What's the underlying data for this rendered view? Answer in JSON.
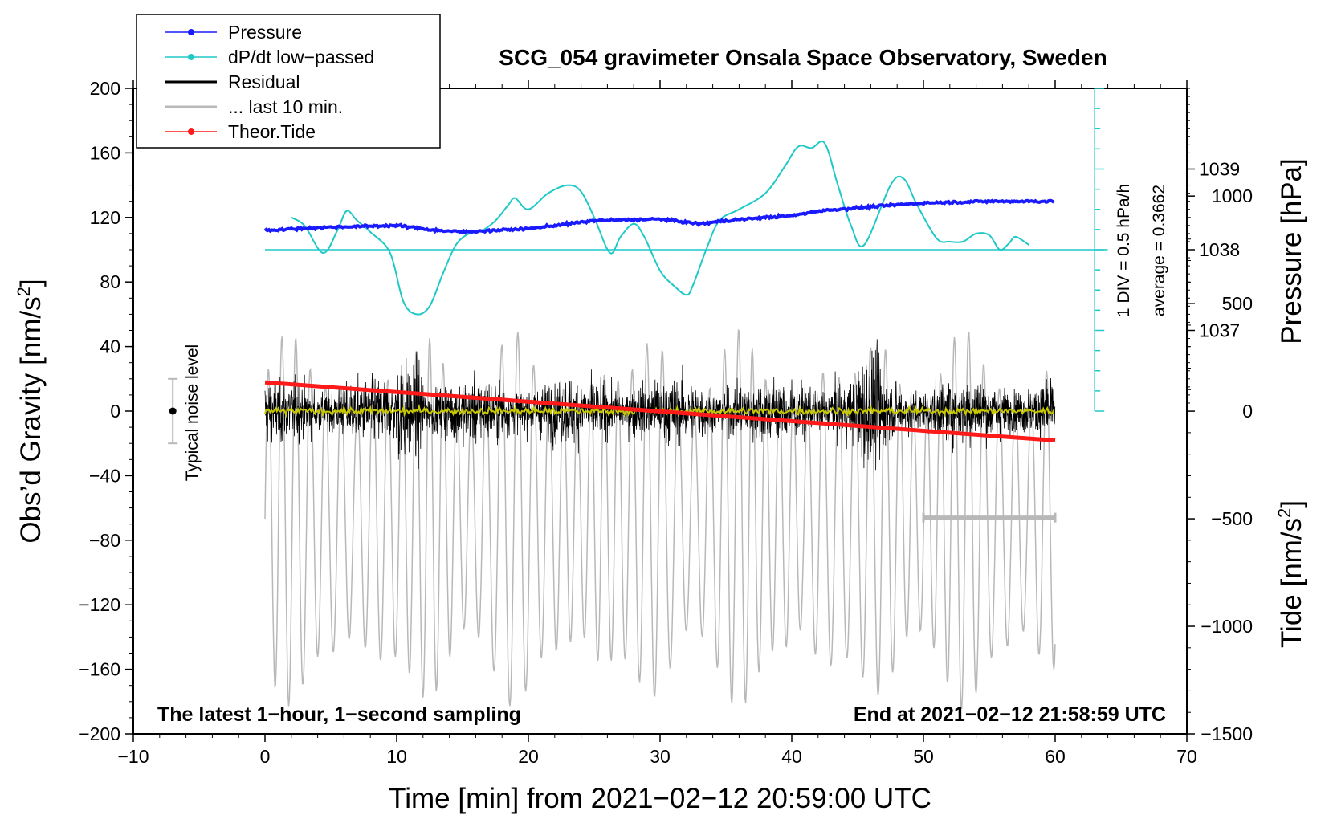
{
  "chart_data": {
    "type": "line",
    "title": "SCG_054 gravimeter Onsala Space Observatory, Sweden",
    "xlabel": "Time [min] from 2021−02−12 20:59:00 UTC",
    "ylabel_left": "Obs’d Gravity [nm/s",
    "ylabel_left_sup": "2",
    "ylabel_left_close": "]",
    "ylabel_pressure": "Pressure [hPa]",
    "ylabel_tide": "Tide [nm/s",
    "ylabel_tide_sup": "2",
    "ylabel_tide_close": "]",
    "xlim": [
      -10,
      70
    ],
    "ylim": [
      -200,
      200
    ],
    "x_ticks": [
      -10,
      0,
      10,
      20,
      30,
      40,
      50,
      60,
      70
    ],
    "x_tick_labels": [
      "−10",
      "0",
      "10",
      "20",
      "30",
      "40",
      "50",
      "60",
      "70"
    ],
    "y_ticks": [
      200,
      160,
      120,
      80,
      40,
      0,
      -40,
      -80,
      -120,
      -160,
      -200
    ],
    "y_tick_labels": [
      "200",
      "160",
      "120",
      "80",
      "40",
      "0",
      "−40",
      "−80",
      "−120",
      "−160",
      "−200"
    ],
    "pressure_ticks": [
      1039,
      1038,
      1037
    ],
    "pressure_tick_labels": [
      "1039",
      "1038",
      "1037"
    ],
    "pressure_axis": {
      "hPa_at_y0": 1036,
      "nm_per_hPa": 50
    },
    "tide_ticks": [
      1000,
      500,
      0,
      -500,
      -1000,
      -1500
    ],
    "tide_tick_labels": [
      "1000",
      "500",
      "0",
      "−500",
      "−1000",
      "−1500"
    ],
    "tide_axis": {
      "tide_at_y_minus200": -1500,
      "nm_per_tide_unit": 0.1333
    },
    "annotations": {
      "bottom_left": "The latest 1−hour, 1−second sampling",
      "bottom_right": "End at 2021−02−12 21:58:59 UTC",
      "div_label": "1 DIV = 0.5 hPa/h",
      "average_label": "average = 0.3662",
      "noise_label": "Typical noise level"
    },
    "noise_bar": {
      "x": -7,
      "center": 0,
      "low": -20,
      "high": 20
    },
    "dpdt_scale": {
      "x": 63,
      "baseline": 100,
      "top": 200,
      "bottom": 0,
      "tick_step": 12.5
    },
    "last10_bar": {
      "x_start": 50,
      "x_end": 60,
      "y": -66
    },
    "legend": [
      {
        "label": "Pressure",
        "color": "#1a1aff",
        "marker": true
      },
      {
        "label": "dP/dt low−passed",
        "color": "#20c8c8",
        "marker": true
      },
      {
        "label": "Residual",
        "color": "#000000",
        "marker": false
      },
      {
        "label": "... last 10 min.",
        "color": "#b8b8b8",
        "marker": false
      },
      {
        "label": "Theor.Tide",
        "color": "#ff1a1a",
        "marker": true
      }
    ],
    "series": [
      {
        "name": "Pressure",
        "color": "#1a1aff",
        "units": "hPa (plotted in gravity units)",
        "x": [
          0,
          5,
          10,
          13,
          15,
          20,
          25,
          30,
          33,
          35,
          38,
          40,
          42,
          45,
          50,
          55,
          60
        ],
        "values": [
          112,
          114,
          115,
          112,
          111,
          113,
          118,
          119,
          116,
          118,
          120,
          121,
          124,
          126,
          129,
          130,
          130
        ]
      },
      {
        "name": "dP/dt low-passed",
        "color": "#20c8c8",
        "x": [
          2,
          3,
          4.4,
          5.5,
          6.2,
          7,
          8,
          9.5,
          10.5,
          11.5,
          12.5,
          13.5,
          14.5,
          15.5,
          16.5,
          17.5,
          18.5,
          19,
          20,
          21.5,
          23,
          24,
          25,
          26.2,
          27,
          28,
          28.8,
          30,
          31,
          32,
          32.5,
          33.5,
          34.5,
          36,
          38,
          39.5,
          40.5,
          41.5,
          42.5,
          43.5,
          44.5,
          45.5,
          47.5,
          48.5,
          49.5,
          51,
          52,
          53,
          54,
          55,
          55.8,
          56.5,
          57,
          58
        ],
        "values": [
          120,
          115,
          98,
          112,
          124,
          118,
          111,
          98,
          68,
          60,
          65,
          85,
          103,
          110,
          112,
          118,
          128,
          132,
          125,
          135,
          140,
          136,
          120,
          98,
          108,
          116,
          108,
          87,
          78,
          72,
          78,
          100,
          118,
          125,
          135,
          152,
          164,
          163,
          166,
          140,
          115,
          103,
          140,
          144,
          128,
          107,
          105,
          105,
          110,
          109,
          100,
          104,
          108,
          103
        ]
      },
      {
        "name": "Residual",
        "color": "#000000",
        "x_range": [
          0,
          60
        ],
        "rms": 18
      },
      {
        "name": "Residual (smoothed)",
        "color": "#c8c800",
        "x_range": [
          0,
          60
        ],
        "rms": 1
      },
      {
        "name": "... last 10 min.",
        "color": "#b8b8b8",
        "x_range": [
          0,
          60
        ],
        "amplitude_tide_units": 900
      },
      {
        "name": "Theor.Tide",
        "color": "#ff1a1a",
        "units": "nm/s2 (tide axis)",
        "x": [
          0,
          60
        ],
        "values": [
          134,
          -136
        ]
      }
    ]
  }
}
